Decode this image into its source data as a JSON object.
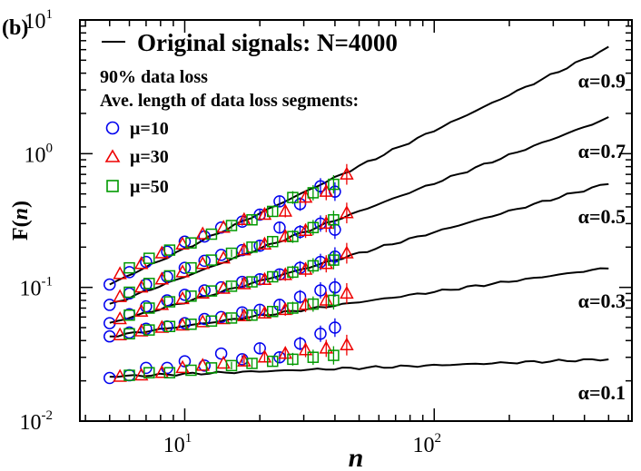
{
  "chart_data": {
    "type": "scatter",
    "panel_label": "(b)",
    "xlabel": "n",
    "ylabel_main": "F(",
    "ylabel_var": "n",
    "ylabel_close": ")",
    "x_scale": "log",
    "y_scale": "log",
    "xlim": [
      3.8,
      620
    ],
    "ylim": [
      0.01,
      10
    ],
    "x_ticks": [
      {
        "value": 10,
        "base": "10",
        "exp": "1"
      },
      {
        "value": 100,
        "base": "10",
        "exp": "2"
      }
    ],
    "y_ticks": [
      {
        "value": 0.01,
        "base": "10",
        "exp": "-2"
      },
      {
        "value": 0.1,
        "base": "10",
        "exp": "-1"
      },
      {
        "value": 1,
        "base": "10",
        "exp": "0"
      },
      {
        "value": 10,
        "base": "10",
        "exp": "1"
      }
    ],
    "legend": {
      "placement": "top-left",
      "line_label": "Original signals:  N=4000",
      "line1": "90% data loss",
      "line2": "Ave. length of data loss segments:",
      "entries": [
        {
          "label": "μ=10",
          "marker": "circle",
          "color": "#0000ee"
        },
        {
          "label": "μ=30",
          "marker": "triangle",
          "color": "#ee0000"
        },
        {
          "label": "μ=50",
          "marker": "square",
          "color": "#009900"
        }
      ]
    },
    "x_points": {
      "mu10": [
        5,
        6,
        7,
        8.5,
        10,
        12,
        14,
        17,
        20,
        24,
        29,
        35,
        40
      ],
      "mu30": [
        5.5,
        6.7,
        8.1,
        9.8,
        11.8,
        14.3,
        17.3,
        20.9,
        25.3,
        30.5,
        36.9,
        44.6
      ],
      "mu50": [
        6,
        7.2,
        8.7,
        10.6,
        12.8,
        15.4,
        18.6,
        22.5,
        27.1,
        32.7,
        39.5
      ]
    },
    "series": [
      {
        "alpha_label": "α=0.9",
        "line": {
          "x": [
            5,
            500
          ],
          "y": [
            0.105,
            6.2
          ]
        },
        "mu10": [
          0.105,
          0.13,
          0.155,
          0.185,
          0.22,
          0.24,
          0.28,
          0.31,
          0.35,
          0.44,
          0.42,
          0.57,
          0.52
        ],
        "mu30": [
          0.126,
          0.15,
          0.18,
          0.21,
          0.25,
          0.28,
          0.32,
          0.35,
          0.37,
          0.47,
          0.52,
          0.7
        ],
        "mu50": [
          0.14,
          0.165,
          0.19,
          0.215,
          0.25,
          0.29,
          0.32,
          0.37,
          0.47,
          0.51,
          0.59
        ]
      },
      {
        "alpha_label": "α=0.7",
        "line": {
          "x": [
            5,
            500
          ],
          "y": [
            0.074,
            1.85
          ]
        },
        "mu10": [
          0.074,
          0.09,
          0.105,
          0.12,
          0.14,
          0.158,
          0.175,
          0.19,
          0.205,
          0.28,
          0.26,
          0.3,
          0.27
        ],
        "mu30": [
          0.085,
          0.1,
          0.115,
          0.13,
          0.15,
          0.165,
          0.19,
          0.21,
          0.24,
          0.265,
          0.3,
          0.36
        ],
        "mu50": [
          0.092,
          0.107,
          0.122,
          0.14,
          0.16,
          0.18,
          0.2,
          0.22,
          0.24,
          0.28,
          0.32
        ]
      },
      {
        "alpha_label": "α=0.5",
        "line": {
          "x": [
            5,
            500
          ],
          "y": [
            0.054,
            0.6
          ]
        },
        "mu10": [
          0.054,
          0.063,
          0.072,
          0.08,
          0.088,
          0.095,
          0.1,
          0.11,
          0.115,
          0.125,
          0.14,
          0.155,
          0.17
        ],
        "mu30": [
          0.058,
          0.066,
          0.074,
          0.082,
          0.09,
          0.098,
          0.106,
          0.114,
          0.124,
          0.136,
          0.15,
          0.18
        ],
        "mu50": [
          0.062,
          0.07,
          0.078,
          0.086,
          0.094,
          0.102,
          0.11,
          0.12,
          0.13,
          0.145,
          0.16
        ]
      },
      {
        "alpha_label": "α=0.3",
        "line": {
          "x": [
            5,
            500
          ],
          "y": [
            0.043,
            0.14
          ]
        },
        "mu10": [
          0.043,
          0.046,
          0.049,
          0.051,
          0.054,
          0.058,
          0.06,
          0.065,
          0.068,
          0.074,
          0.085,
          0.095,
          0.1
        ],
        "mu30": [
          0.044,
          0.047,
          0.05,
          0.052,
          0.055,
          0.058,
          0.061,
          0.064,
          0.068,
          0.074,
          0.08,
          0.09
        ],
        "mu50": [
          0.045,
          0.048,
          0.051,
          0.053,
          0.056,
          0.059,
          0.062,
          0.066,
          0.07,
          0.075,
          0.08
        ]
      },
      {
        "alpha_label": "α=0.1",
        "line": {
          "x": [
            5,
            500
          ],
          "y": [
            0.0215,
            0.029
          ]
        },
        "mu10": [
          0.021,
          0.022,
          0.025,
          0.025,
          0.028,
          0.026,
          0.032,
          0.029,
          0.035,
          0.03,
          0.038,
          0.045,
          0.05
        ],
        "mu30": [
          0.0215,
          0.022,
          0.023,
          0.025,
          0.026,
          0.027,
          0.028,
          0.03,
          0.032,
          0.034,
          0.035,
          0.037
        ],
        "mu50": [
          0.022,
          0.023,
          0.023,
          0.024,
          0.025,
          0.026,
          0.027,
          0.028,
          0.029,
          0.03,
          0.031
        ]
      }
    ]
  }
}
